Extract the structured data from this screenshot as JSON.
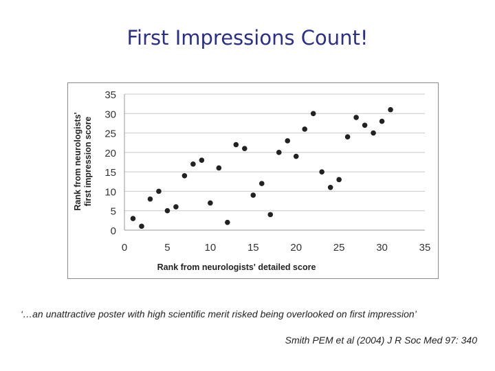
{
  "slide": {
    "title": "First Impressions Count!",
    "quote": "‘…an unattractive poster with high scientific merit risked being overlooked on first impression’",
    "citation": "Smith PEM et al (2004) J R Soc Med 97: 340"
  },
  "chart_data": {
    "type": "scatter",
    "title": "",
    "xlabel": "Rank from neurologists' detailed score",
    "ylabel_lines": [
      "Rank from neurologists'",
      "first impression score"
    ],
    "xlim": [
      0,
      35
    ],
    "ylim": [
      0,
      35
    ],
    "xticks": [
      0,
      5,
      10,
      15,
      20,
      25,
      30,
      35
    ],
    "yticks": [
      0,
      5,
      10,
      15,
      20,
      25,
      30,
      35
    ],
    "grid": {
      "horizontal": true,
      "vertical": false
    },
    "point_color": "#222222",
    "points": [
      {
        "x": 1,
        "y": 3
      },
      {
        "x": 2,
        "y": 1
      },
      {
        "x": 3,
        "y": 8
      },
      {
        "x": 4,
        "y": 10
      },
      {
        "x": 5,
        "y": 5
      },
      {
        "x": 6,
        "y": 6
      },
      {
        "x": 7,
        "y": 14
      },
      {
        "x": 8,
        "y": 17
      },
      {
        "x": 9,
        "y": 18
      },
      {
        "x": 10,
        "y": 7
      },
      {
        "x": 11,
        "y": 16
      },
      {
        "x": 12,
        "y": 2
      },
      {
        "x": 13,
        "y": 22
      },
      {
        "x": 14,
        "y": 21
      },
      {
        "x": 15,
        "y": 9
      },
      {
        "x": 16,
        "y": 12
      },
      {
        "x": 17,
        "y": 4
      },
      {
        "x": 18,
        "y": 20
      },
      {
        "x": 19,
        "y": 23
      },
      {
        "x": 20,
        "y": 19
      },
      {
        "x": 21,
        "y": 26
      },
      {
        "x": 22,
        "y": 30
      },
      {
        "x": 23,
        "y": 15
      },
      {
        "x": 24,
        "y": 11
      },
      {
        "x": 25,
        "y": 13
      },
      {
        "x": 26,
        "y": 24
      },
      {
        "x": 27,
        "y": 29
      },
      {
        "x": 28,
        "y": 27
      },
      {
        "x": 29,
        "y": 25
      },
      {
        "x": 30,
        "y": 28
      },
      {
        "x": 31,
        "y": 31
      }
    ]
  }
}
